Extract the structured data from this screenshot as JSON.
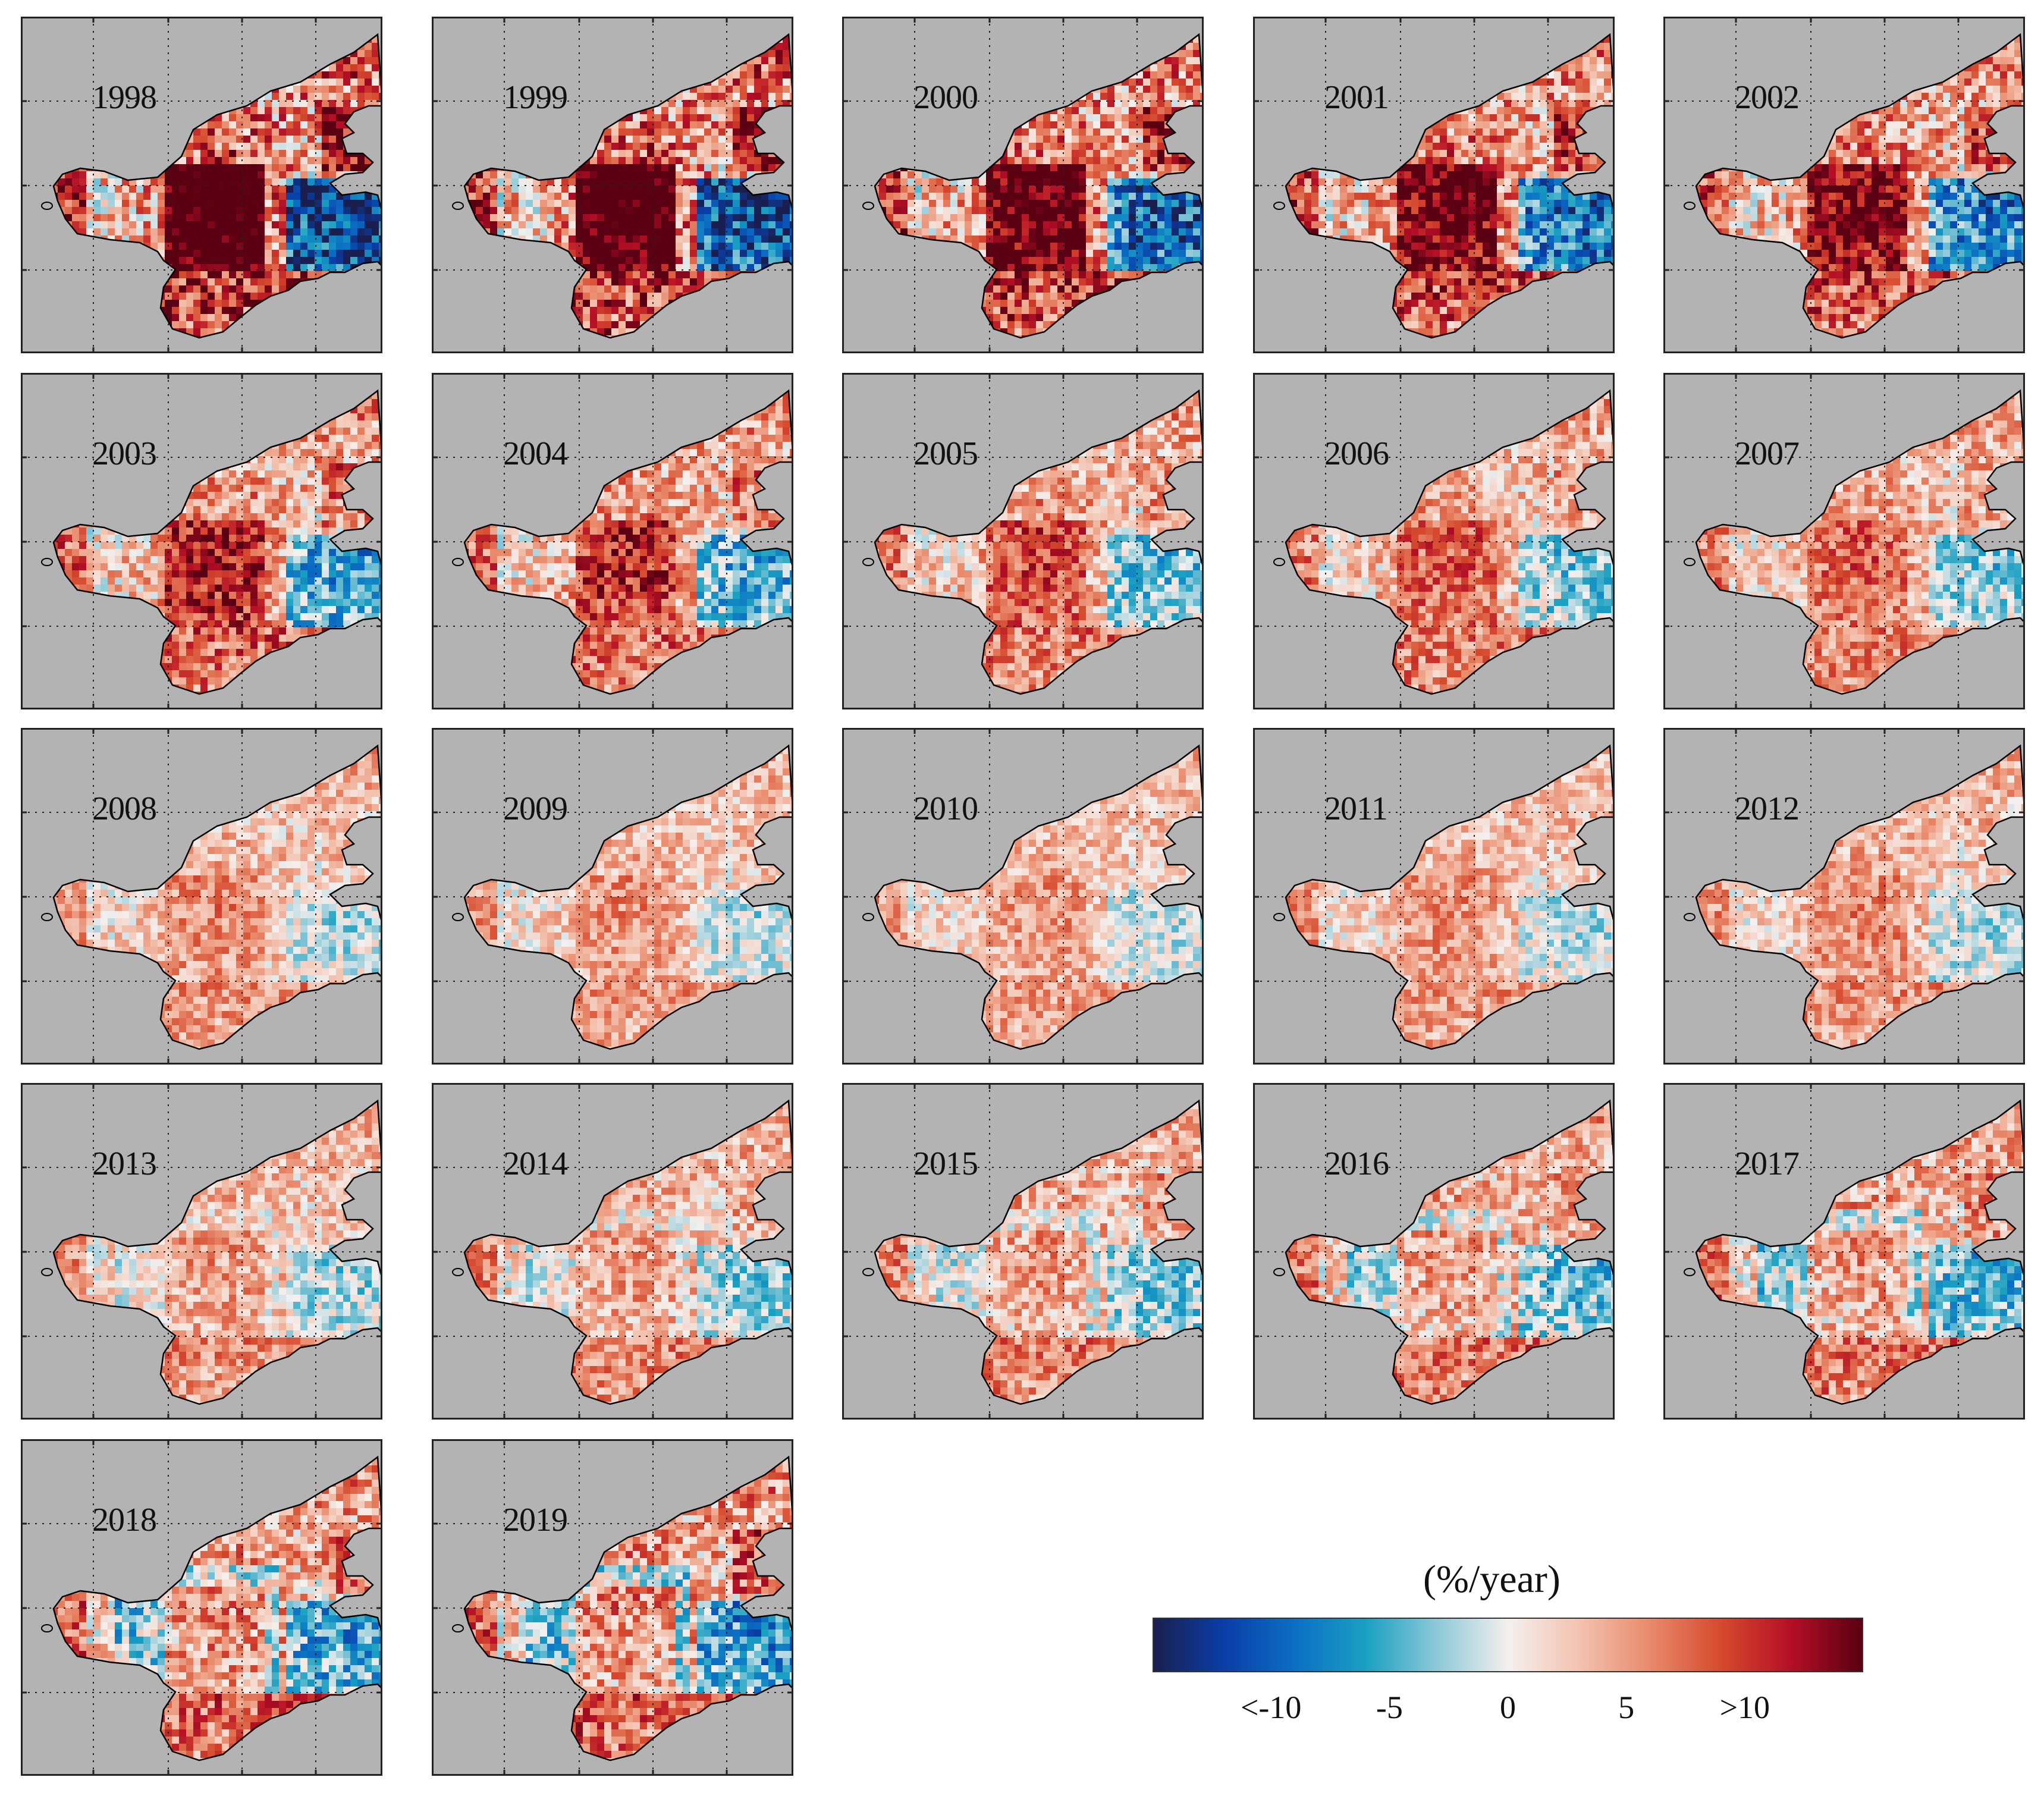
{
  "figure": {
    "panels": [
      {
        "year": "1998",
        "intensity": 1.0
      },
      {
        "year": "1999",
        "intensity": 0.95
      },
      {
        "year": "2000",
        "intensity": 0.85
      },
      {
        "year": "2001",
        "intensity": 0.78
      },
      {
        "year": "2002",
        "intensity": 0.72
      },
      {
        "year": "2003",
        "intensity": 0.6
      },
      {
        "year": "2004",
        "intensity": 0.55
      },
      {
        "year": "2005",
        "intensity": 0.45
      },
      {
        "year": "2006",
        "intensity": 0.4
      },
      {
        "year": "2007",
        "intensity": 0.38
      },
      {
        "year": "2008",
        "intensity": 0.25
      },
      {
        "year": "2009",
        "intensity": 0.22
      },
      {
        "year": "2010",
        "intensity": 0.2
      },
      {
        "year": "2011",
        "intensity": 0.22
      },
      {
        "year": "2012",
        "intensity": 0.25
      },
      {
        "year": "2013",
        "intensity": 0.3
      },
      {
        "year": "2014",
        "intensity": 0.35
      },
      {
        "year": "2015",
        "intensity": 0.4
      },
      {
        "year": "2016",
        "intensity": 0.45
      },
      {
        "year": "2017",
        "intensity": 0.5
      },
      {
        "year": "2018",
        "intensity": 0.6
      },
      {
        "year": "2019",
        "intensity": 0.65
      }
    ]
  },
  "colorbar": {
    "title": "(%/year)",
    "ticks": [
      {
        "label": "<-10",
        "value": -10
      },
      {
        "label": "-5",
        "value": -5
      },
      {
        "label": "0",
        "value": 0
      },
      {
        "label": "5",
        "value": 5
      },
      {
        "label": ">10",
        "value": 10
      }
    ],
    "range": [
      -15,
      15
    ],
    "stops": [
      "#1a1f4f",
      "#0a3ea8",
      "#0b6fc4",
      "#1aa0c2",
      "#8ec9d8",
      "#f4f0ee",
      "#f3c3b0",
      "#e98a6c",
      "#d64a2e",
      "#b40f26",
      "#5a0012"
    ]
  },
  "colors": {
    "land": "#b3b3b3",
    "coast": "#000000"
  }
}
